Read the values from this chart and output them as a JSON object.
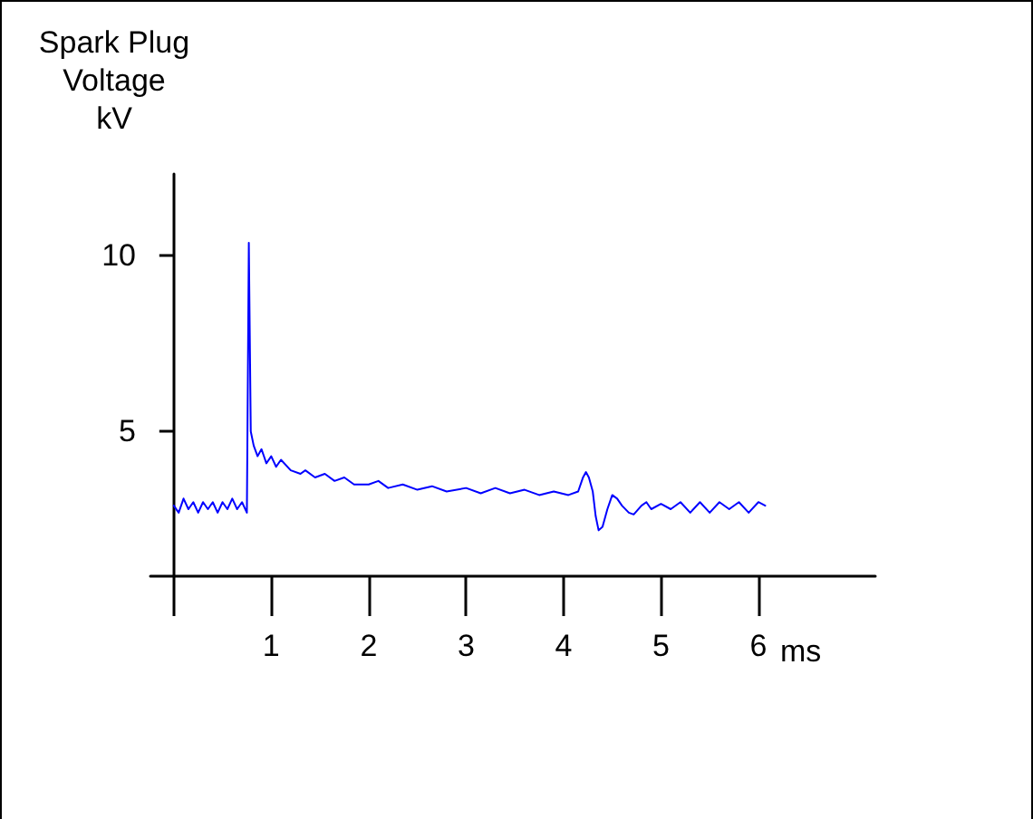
{
  "chart_data": {
    "type": "line",
    "ylabel": "Spark Plug\nVoltage\nkV",
    "xlabel": "ms",
    "x": [
      0,
      0.05,
      0.1,
      0.15,
      0.2,
      0.25,
      0.3,
      0.35,
      0.4,
      0.45,
      0.5,
      0.55,
      0.6,
      0.65,
      0.7,
      0.75,
      0.76,
      0.77,
      0.79,
      0.82,
      0.86,
      0.9,
      0.95,
      1.0,
      1.05,
      1.1,
      1.2,
      1.3,
      1.35,
      1.45,
      1.55,
      1.65,
      1.75,
      1.85,
      2.0,
      2.1,
      2.2,
      2.35,
      2.5,
      2.65,
      2.8,
      3.0,
      3.15,
      3.3,
      3.45,
      3.6,
      3.75,
      3.9,
      4.05,
      4.15,
      4.2,
      4.23,
      4.26,
      4.3,
      4.33,
      4.36,
      4.4,
      4.45,
      4.5,
      4.55,
      4.6,
      4.67,
      4.72,
      4.8,
      4.85,
      4.9,
      5.0,
      5.1,
      5.2,
      5.3,
      5.4,
      5.5,
      5.6,
      5.7,
      5.8,
      5.9,
      6.0,
      6.07
    ],
    "series": [
      {
        "color": "#0000ff",
        "values": [
          2.9,
          2.7,
          3.1,
          2.8,
          3.0,
          2.7,
          3.0,
          2.8,
          3.0,
          2.7,
          3.0,
          2.8,
          3.1,
          2.8,
          3.0,
          2.7,
          2.7,
          10.35,
          5.0,
          4.6,
          4.3,
          4.5,
          4.1,
          4.3,
          4.0,
          4.2,
          3.9,
          3.8,
          3.9,
          3.7,
          3.8,
          3.6,
          3.7,
          3.5,
          3.5,
          3.6,
          3.4,
          3.5,
          3.35,
          3.45,
          3.3,
          3.4,
          3.25,
          3.4,
          3.25,
          3.35,
          3.2,
          3.3,
          3.2,
          3.3,
          3.7,
          3.85,
          3.7,
          3.3,
          2.6,
          2.2,
          2.3,
          2.8,
          3.2,
          3.1,
          2.9,
          2.7,
          2.65,
          2.9,
          3.0,
          2.8,
          2.95,
          2.8,
          3.0,
          2.7,
          3.0,
          2.7,
          3.0,
          2.8,
          3.0,
          2.7,
          3.0,
          2.9
        ]
      }
    ],
    "xlim": [
      -0.24,
      7.2
    ],
    "xticks": [
      {
        "value": 0,
        "label": null
      },
      1,
      2,
      3,
      4,
      5,
      6
    ],
    "ylim": [
      0.9,
      12.3
    ],
    "yticks": [
      5,
      10
    ],
    "grid": false,
    "marker": "none",
    "line_style": "solid"
  }
}
